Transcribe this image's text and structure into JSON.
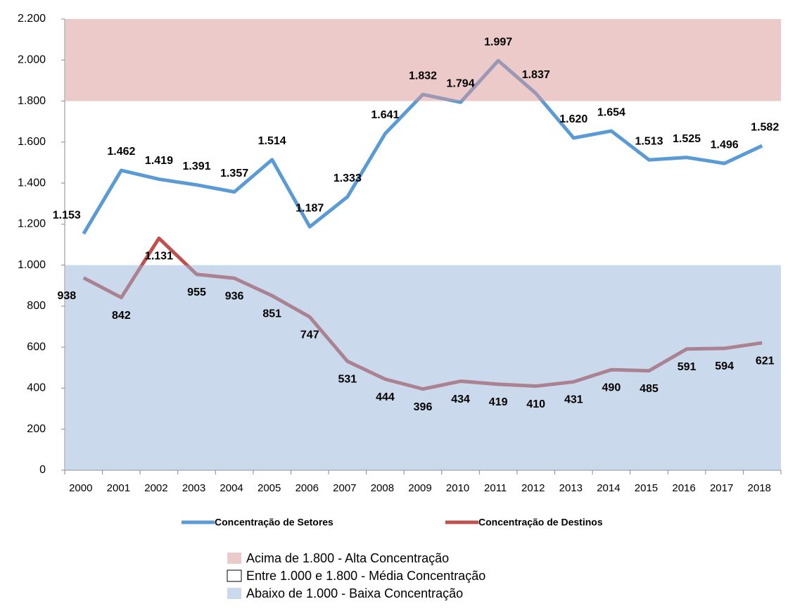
{
  "chart_data": {
    "type": "line",
    "categories": [
      "2000",
      "2001",
      "2002",
      "2003",
      "2004",
      "2005",
      "2006",
      "2007",
      "2008",
      "2009",
      "2010",
      "2011",
      "2012",
      "2013",
      "2014",
      "2015",
      "2016",
      "2017",
      "2018"
    ],
    "series": [
      {
        "name": "Concentração de Setores",
        "color": "#5b9bd5",
        "values": [
          1153,
          1462,
          1419,
          1391,
          1357,
          1514,
          1187,
          1333,
          1641,
          1832,
          1794,
          1997,
          1837,
          1620,
          1654,
          1513,
          1525,
          1496,
          1582
        ],
        "value_labels": [
          "1.153",
          "1.462",
          "1.419",
          "1.391",
          "1.357",
          "1.514",
          "1.187",
          "1.333",
          "1.641",
          "1.832",
          "1.794",
          "1.997",
          "1.837",
          "1.620",
          "1.654",
          "1.513",
          "1.525",
          "1.496",
          "1.582"
        ]
      },
      {
        "name": "Concentração de Destinos",
        "color": "#c0504d",
        "values": [
          938,
          842,
          1131,
          955,
          936,
          851,
          747,
          531,
          444,
          396,
          434,
          419,
          410,
          431,
          490,
          485,
          591,
          594,
          621
        ],
        "value_labels": [
          "938",
          "842",
          "1.131",
          "955",
          "936",
          "851",
          "747",
          "531",
          "444",
          "396",
          "434",
          "419",
          "410",
          "431",
          "490",
          "485",
          "591",
          "594",
          "621"
        ]
      }
    ],
    "bands": [
      {
        "from": 1800,
        "to": 2200,
        "color": "#d99694",
        "label": "Acima de 1.800 - Alta Concentração"
      },
      {
        "from": 1000,
        "to": 1800,
        "color": "#ffffff",
        "label": "Entre 1.000 e 1.800 - Média Concentração"
      },
      {
        "from": 0,
        "to": 1000,
        "color": "#95b3d7",
        "label": "Abaixo de 1.000 - Baixa Concentração"
      }
    ],
    "ylim": [
      0,
      2200
    ],
    "yticks": [
      0,
      200,
      400,
      600,
      800,
      {
        "value": 1000,
        "label": "1.000"
      },
      {
        "value": 1200,
        "label": "1.200"
      },
      {
        "value": 1400,
        "label": "1.400"
      },
      {
        "value": 1600,
        "label": "1.600"
      },
      {
        "value": 1800,
        "label": "1.800"
      },
      {
        "value": 2000,
        "label": "2.000"
      },
      {
        "value": 2200,
        "label": "2.200"
      }
    ]
  }
}
